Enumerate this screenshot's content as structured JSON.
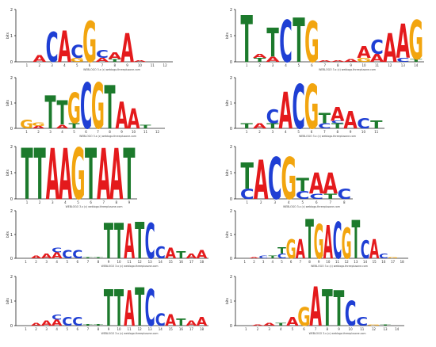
{
  "colors": {
    "A": "#e41a1c",
    "C": "#1f3fd4",
    "G": "#f2a50f",
    "T": "#1c7a2c",
    "axis": "#222222"
  },
  "axis": {
    "ylabel": "bits",
    "ticks": [
      "0",
      "1",
      "2"
    ]
  },
  "caption": "WEBLOGO 3.x (c) weblogo.threeplusone.com",
  "logos": [
    {
      "id": "logo-1",
      "positions": [
        [],
        [
          [
            "A",
            0.25
          ]
        ],
        [
          [
            "C",
            1.15
          ]
        ],
        [
          [
            "A",
            1.2
          ]
        ],
        [
          [
            "G",
            0.15
          ],
          [
            "C",
            0.5
          ]
        ],
        [
          [
            "G",
            1.55
          ]
        ],
        [
          [
            "A",
            0.15
          ],
          [
            "C",
            0.3
          ]
        ],
        [
          [
            "T",
            0.1
          ],
          [
            "A",
            0.25
          ]
        ],
        [
          [
            "A",
            1.1
          ]
        ],
        [
          [
            "A",
            0.05
          ]
        ],
        [],
        []
      ]
    },
    {
      "id": "logo-2",
      "positions": [
        [
          [
            "T",
            1.8
          ]
        ],
        [
          [
            "T",
            0.15
          ],
          [
            "A",
            0.15
          ]
        ],
        [
          [
            "A",
            0.2
          ],
          [
            "T",
            1.1
          ]
        ],
        [
          [
            "C",
            1.6
          ]
        ],
        [
          [
            "T",
            1.7
          ]
        ],
        [
          [
            "G",
            1.55
          ]
        ],
        [
          [
            "A",
            0.05
          ]
        ],
        [
          [
            "A",
            0.05
          ]
        ],
        [
          [
            "A",
            0.1
          ]
        ],
        [
          [
            "G",
            0.15
          ],
          [
            "A",
            0.45
          ]
        ],
        [
          [
            "A",
            0.3
          ],
          [
            "C",
            0.55
          ]
        ],
        [
          [
            "A",
            1.1
          ]
        ],
        [
          [
            "C",
            0.15
          ],
          [
            "A",
            1.3
          ]
        ],
        [
          [
            "T",
            0.1
          ],
          [
            "G",
            1.5
          ]
        ]
      ]
    },
    {
      "id": "logo-3",
      "positions": [
        [
          [
            "G",
            0.35
          ]
        ],
        [
          [
            "A",
            0.1
          ],
          [
            "G",
            0.15
          ]
        ],
        [
          [
            "T",
            1.3
          ]
        ],
        [
          [
            "A",
            0.15
          ],
          [
            "T",
            0.95
          ]
        ],
        [
          [
            "T",
            0.2
          ],
          [
            "G",
            1.2
          ]
        ],
        [
          [
            "C",
            1.8
          ]
        ],
        [
          [
            "G",
            1.8
          ]
        ],
        [
          [
            "T",
            1.7
          ]
        ],
        [
          [
            "A",
            1.05
          ]
        ],
        [
          [
            "A",
            0.8
          ]
        ],
        [
          [
            "T",
            0.15
          ]
        ],
        []
      ]
    },
    {
      "id": "logo-4",
      "positions": [
        [
          [
            "T",
            0.2
          ]
        ],
        [
          [
            "A",
            0.2
          ]
        ],
        [
          [
            "T",
            0.2
          ],
          [
            "C",
            0.55
          ]
        ],
        [
          [
            "A",
            1.45
          ]
        ],
        [
          [
            "C",
            1.75
          ]
        ],
        [
          [
            "G",
            1.75
          ]
        ],
        [
          [
            "C",
            0.2
          ],
          [
            "T",
            0.4
          ]
        ],
        [
          [
            "T",
            0.2
          ],
          [
            "C",
            0.1
          ],
          [
            "A",
            0.55
          ]
        ],
        [
          [
            "A",
            0.7
          ]
        ],
        [
          [
            "C",
            0.4
          ]
        ],
        [
          [
            "T",
            0.3
          ]
        ]
      ]
    },
    {
      "id": "logo-5",
      "positions": [
        [
          [
            "T",
            1.95
          ]
        ],
        [
          [
            "T",
            1.95
          ]
        ],
        [
          [
            "A",
            1.95
          ]
        ],
        [
          [
            "A",
            1.95
          ]
        ],
        [
          [
            "G",
            1.95
          ]
        ],
        [
          [
            "T",
            1.95
          ]
        ],
        [
          [
            "A",
            1.95
          ]
        ],
        [
          [
            "A",
            1.95
          ]
        ],
        [
          [
            "T",
            1.95
          ]
        ]
      ]
    },
    {
      "id": "logo-6",
      "positions": [
        [
          [
            "C",
            0.4
          ],
          [
            "T",
            1.0
          ]
        ],
        [
          [
            "A",
            1.5
          ]
        ],
        [
          [
            "C",
            1.6
          ]
        ],
        [
          [
            "G",
            1.6
          ]
        ],
        [
          [
            "C",
            0.3
          ],
          [
            "T",
            0.5
          ]
        ],
        [
          [
            "C",
            0.2
          ],
          [
            "A",
            0.8
          ]
        ],
        [
          [
            "T",
            0.2
          ],
          [
            "A",
            0.8
          ]
        ],
        [
          [
            "C",
            0.4
          ]
        ]
      ]
    },
    {
      "id": "logo-7",
      "positions": [
        [],
        [
          [
            "A",
            0.1
          ]
        ],
        [
          [
            "A",
            0.2
          ]
        ],
        [
          [
            "A",
            0.25
          ],
          [
            "C",
            0.2
          ]
        ],
        [
          [
            "C",
            0.35
          ]
        ],
        [
          [
            "C",
            0.35
          ]
        ],
        [
          [
            "T",
            0.05
          ]
        ],
        [
          [
            "T",
            0.05
          ]
        ],
        [
          [
            "T",
            1.5
          ]
        ],
        [
          [
            "T",
            1.5
          ]
        ],
        [
          [
            "A",
            1.45
          ]
        ],
        [
          [
            "T",
            1.55
          ]
        ],
        [
          [
            "C",
            1.5
          ]
        ],
        [
          [
            "C",
            0.5
          ]
        ],
        [
          [
            "A",
            0.45
          ]
        ],
        [
          [
            "T",
            0.3
          ]
        ],
        [
          [
            "A",
            0.2
          ]
        ],
        [
          [
            "A",
            0.35
          ]
        ]
      ]
    },
    {
      "id": "logo-8",
      "positions": [
        [],
        [
          [
            "A",
            0.05
          ]
        ],
        [
          [
            "C",
            0.1
          ]
        ],
        [
          [
            "T",
            0.1
          ]
        ],
        [
          [
            "C",
            0.2
          ],
          [
            "T",
            0.25
          ]
        ],
        [
          [
            "G",
            0.8
          ]
        ],
        [
          [
            "A",
            0.8
          ]
        ],
        [
          [
            "T",
            1.65
          ]
        ],
        [
          [
            "G",
            1.45
          ]
        ],
        [
          [
            "A",
            1.4
          ]
        ],
        [
          [
            "C",
            1.55
          ]
        ],
        [
          [
            "G",
            1.3
          ]
        ],
        [
          [
            "T",
            1.6
          ]
        ],
        [
          [
            "C",
            0.75
          ]
        ],
        [
          [
            "A",
            0.8
          ]
        ],
        [
          [
            "C",
            0.2
          ]
        ],
        [
          [
            "G",
            0.05
          ]
        ],
        []
      ]
    },
    {
      "id": "logo-9",
      "positions": [
        [],
        [
          [
            "A",
            0.1
          ]
        ],
        [
          [
            "A",
            0.2
          ]
        ],
        [
          [
            "A",
            0.25
          ],
          [
            "C",
            0.2
          ]
        ],
        [
          [
            "C",
            0.35
          ]
        ],
        [
          [
            "C",
            0.35
          ]
        ],
        [
          [
            "T",
            0.05
          ]
        ],
        [
          [
            "T",
            0.05
          ]
        ],
        [
          [
            "T",
            1.5
          ]
        ],
        [
          [
            "T",
            1.5
          ]
        ],
        [
          [
            "A",
            1.45
          ]
        ],
        [
          [
            "T",
            1.55
          ]
        ],
        [
          [
            "C",
            1.5
          ]
        ],
        [
          [
            "C",
            0.5
          ]
        ],
        [
          [
            "A",
            0.45
          ]
        ],
        [
          [
            "T",
            0.3
          ]
        ],
        [
          [
            "A",
            0.2
          ]
        ],
        [
          [
            "A",
            0.35
          ]
        ]
      ]
    },
    {
      "id": "logo-10",
      "positions": [
        [],
        [
          [
            "A",
            0.05
          ]
        ],
        [
          [
            "A",
            0.1
          ]
        ],
        [
          [
            "T",
            0.1
          ]
        ],
        [
          [
            "A",
            0.35
          ]
        ],
        [
          [
            "G",
            0.75
          ]
        ],
        [
          [
            "A",
            1.6
          ]
        ],
        [
          [
            "T",
            1.5
          ]
        ],
        [
          [
            "T",
            1.45
          ]
        ],
        [
          [
            "C",
            1.0
          ]
        ],
        [
          [
            "C",
            0.35
          ]
        ],
        [
          [
            "G",
            0.05
          ]
        ],
        [
          [
            "T",
            0.05
          ]
        ],
        []
      ]
    }
  ]
}
